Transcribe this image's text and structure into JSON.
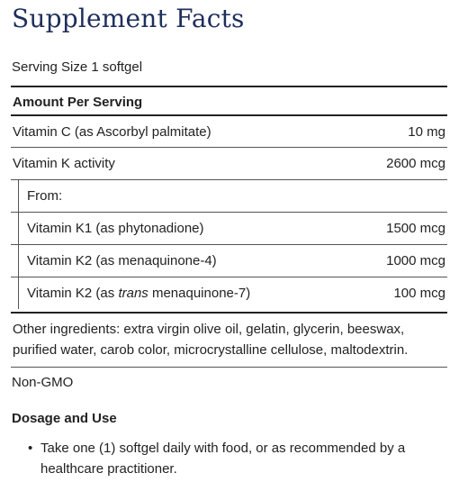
{
  "title": "Supplement Facts",
  "serving_size": "Serving Size 1 softgel",
  "amount_per_serving": "Amount Per Serving",
  "nutrients": [
    {
      "label": "Vitamin C (as Ascorbyl palmitate)",
      "amount": "10 mg"
    },
    {
      "label": "Vitamin K activity",
      "amount": "2600 mcg"
    },
    {
      "label": "From:",
      "amount": ""
    },
    {
      "label": "Vitamin K1 (as phytonadione)",
      "amount": "1500 mcg"
    },
    {
      "label": "Vitamin K2 (as menaquinone-4)",
      "amount": "1000 mcg"
    },
    {
      "label_prefix": "Vitamin K2 (as ",
      "label_italic": "trans",
      "label_suffix": " menaquinone-7)",
      "amount": "100 mcg"
    }
  ],
  "other_ingredients": "Other ingredients: extra virgin olive oil, gelatin, glycerin, beeswax, purified water, carob color, microcrystalline cellulose, maltodextrin.",
  "non_gmo": "Non-GMO",
  "dosage": {
    "title": "Dosage and Use",
    "bullet": "•",
    "items": [
      "Take one (1) softgel daily with food, or as recommended by a healthcare practitioner."
    ]
  }
}
